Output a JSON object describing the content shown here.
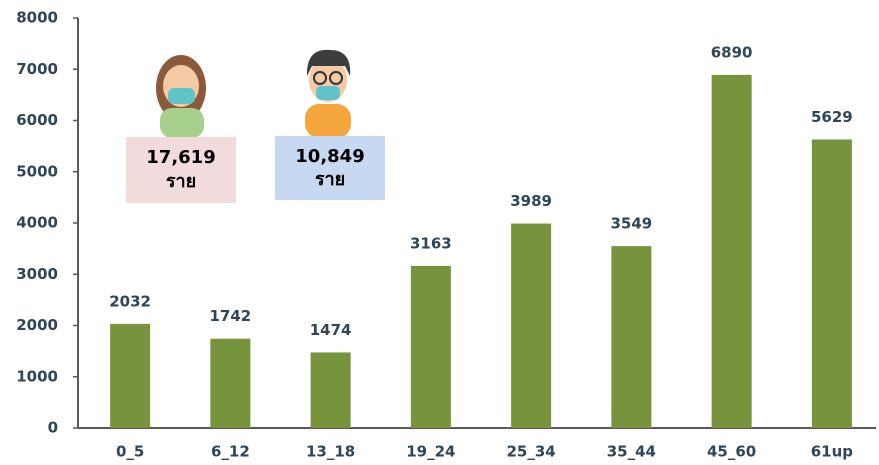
{
  "chart_data": {
    "type": "bar",
    "categories": [
      "0_5",
      "6_12",
      "13_18",
      "19_24",
      "25_34",
      "35_44",
      "45_60",
      "61up"
    ],
    "values": [
      2032,
      1742,
      1474,
      3163,
      3989,
      3549,
      6890,
      5629
    ],
    "color": "#77933c",
    "ylim": [
      0,
      8000
    ],
    "yticks": [
      0,
      1000,
      2000,
      3000,
      4000,
      5000,
      6000,
      7000,
      8000
    ],
    "grid": false,
    "annotations": [
      {
        "text": "17,619",
        "unit": "ราย",
        "color": "#f2dcdb"
      },
      {
        "text": "10,849",
        "unit": "ราย",
        "color": "#c6d9f1"
      }
    ]
  }
}
